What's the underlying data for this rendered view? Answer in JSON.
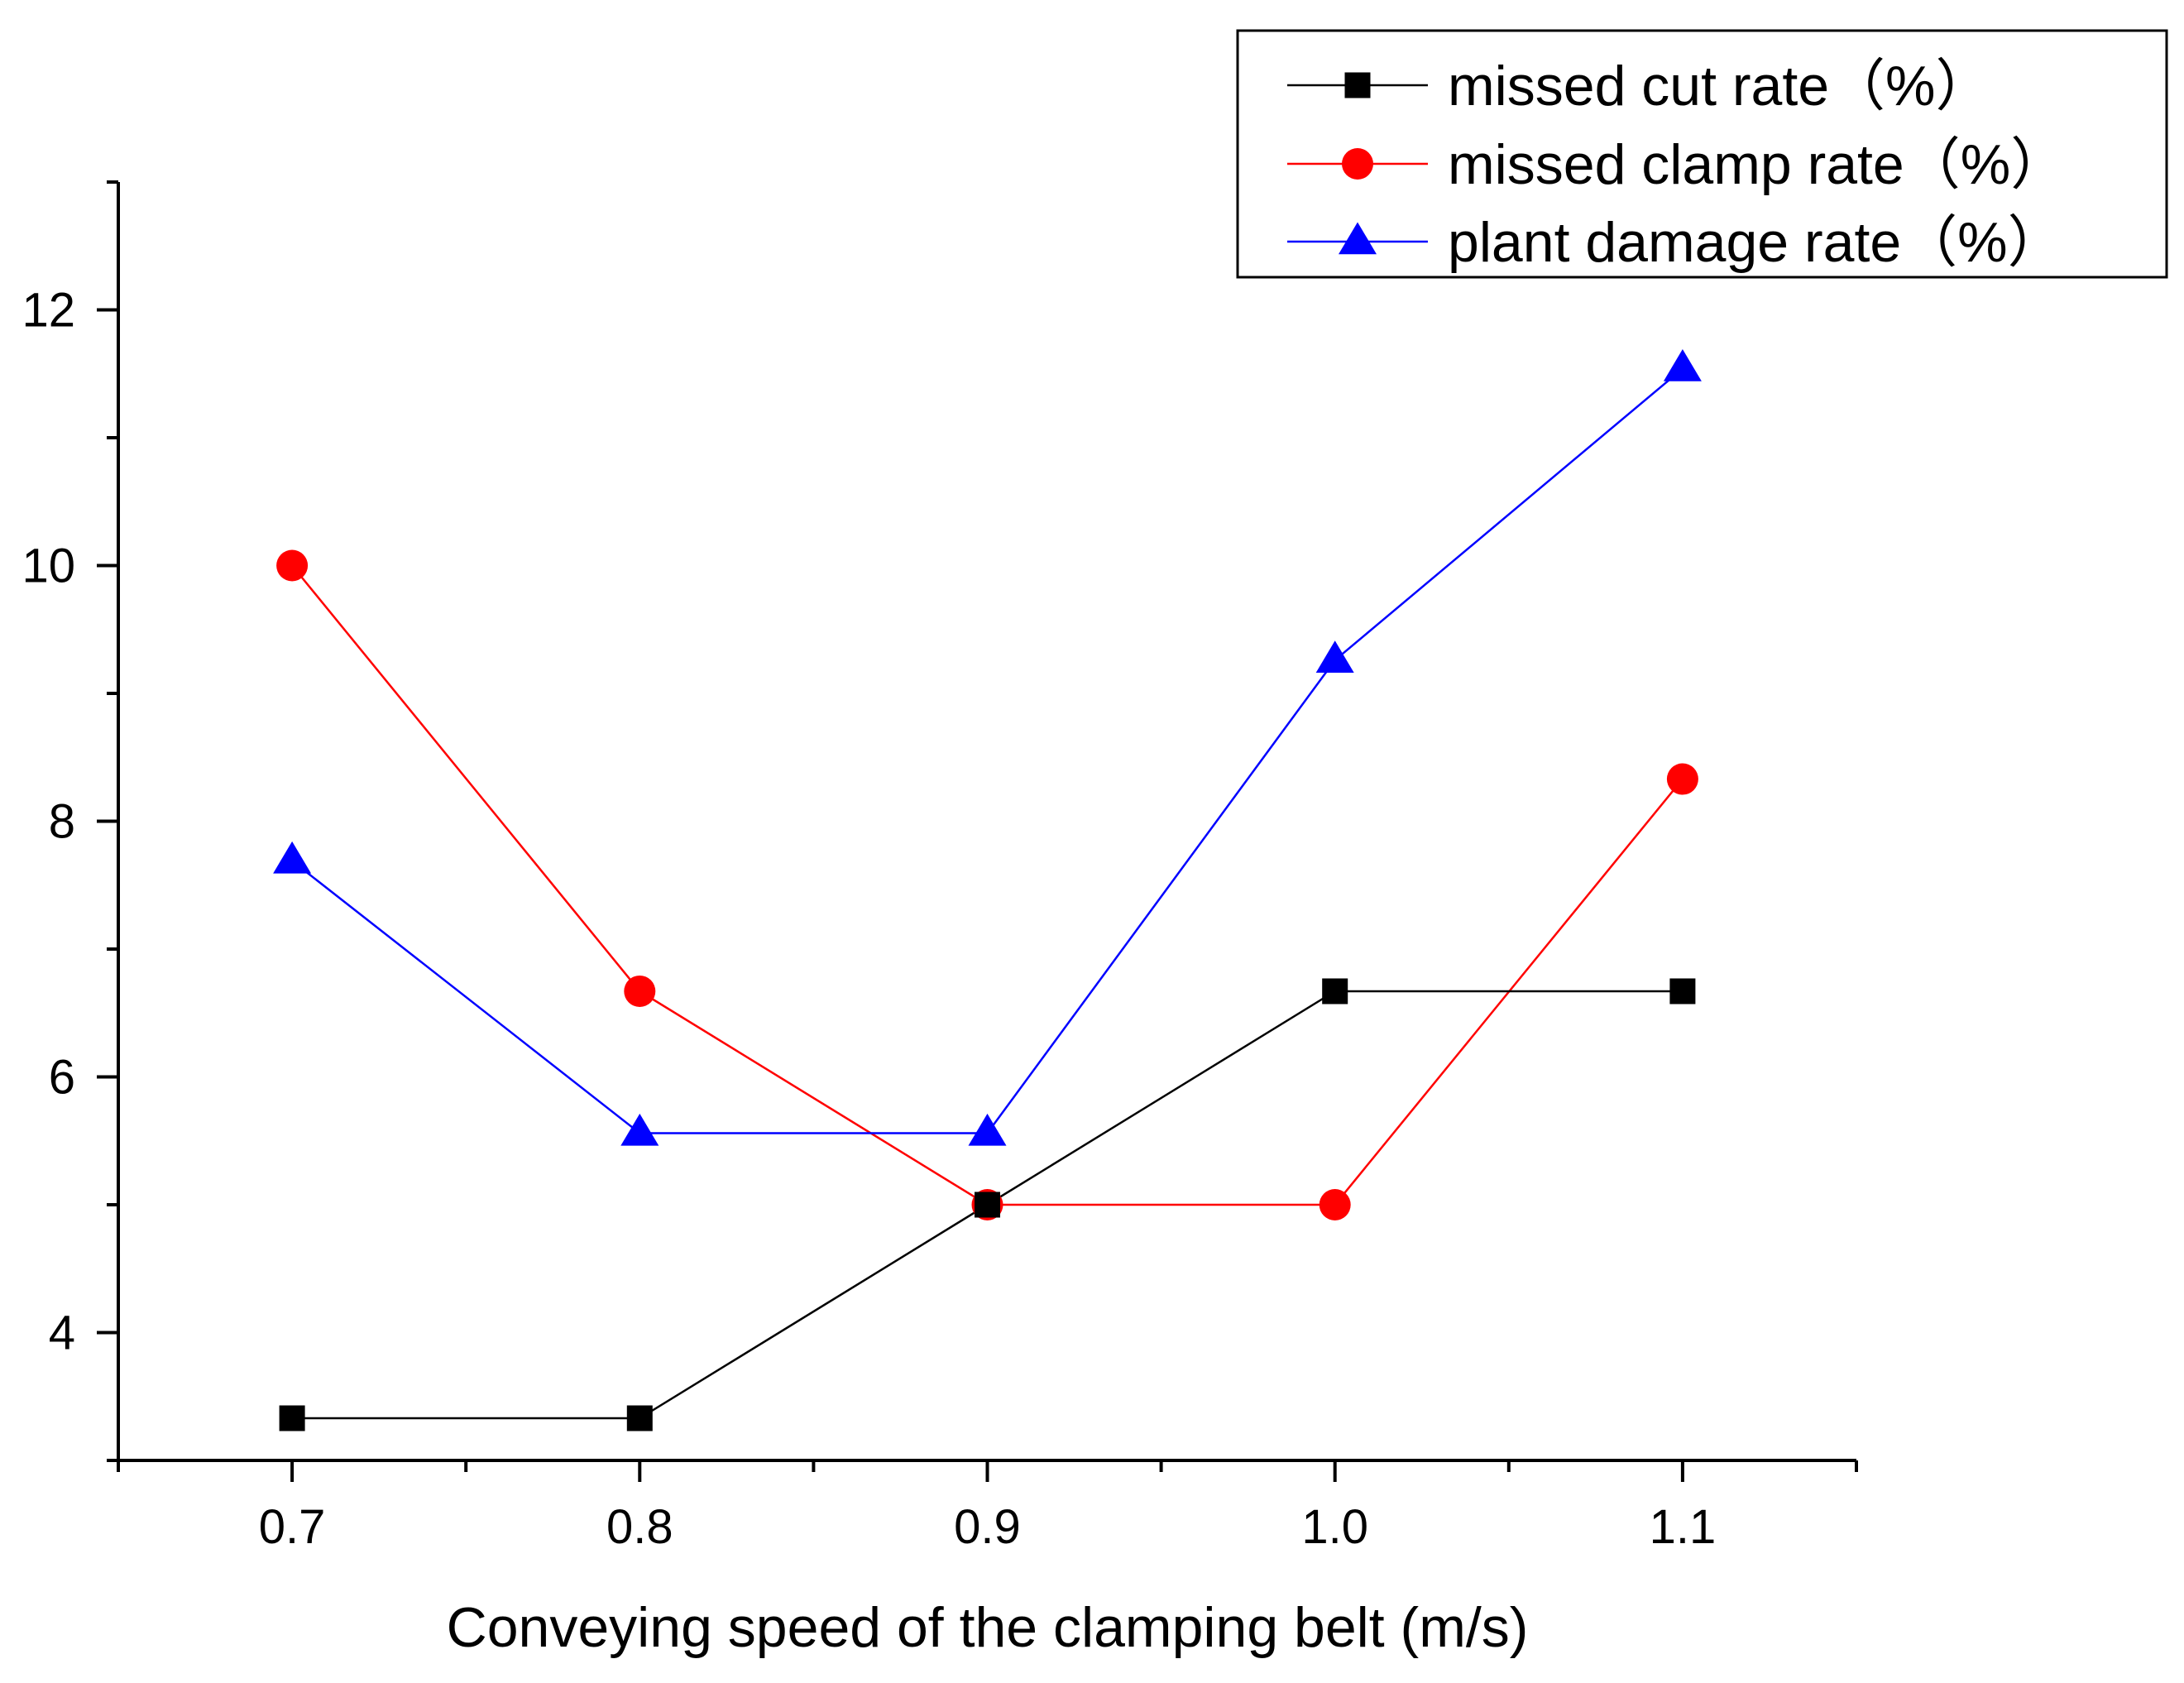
{
  "chart_data": {
    "type": "line",
    "title": "",
    "xlabel": "Conveying speed of the clamping belt (m/s)",
    "ylabel": "",
    "x": [
      0.7,
      0.8,
      0.9,
      1.0,
      1.1
    ],
    "x_tick_labels": [
      "0.7",
      "0.8",
      "0.9",
      "1.0",
      "1.1"
    ],
    "y_ticks": [
      4,
      6,
      8,
      10,
      12
    ],
    "y_tick_labels": [
      "4",
      "6",
      "8",
      "10",
      "12"
    ],
    "xlim": [
      0.65,
      1.15
    ],
    "ylim": [
      3,
      13
    ],
    "grid": false,
    "legend_position": "top-right",
    "series": [
      {
        "name": "missed cut rate（%）",
        "color": "#000000",
        "marker": "square",
        "values": [
          3.33,
          3.33,
          5.0,
          6.67,
          6.67
        ]
      },
      {
        "name": "missed clamp rate（%）",
        "color": "#ff0000",
        "marker": "circle",
        "values": [
          10.0,
          6.67,
          5.0,
          5.0,
          8.33
        ]
      },
      {
        "name": "plant damage rate（%）",
        "color": "#0000ff",
        "marker": "triangle",
        "values": [
          7.69,
          5.56,
          5.56,
          9.26,
          11.54
        ]
      }
    ]
  }
}
